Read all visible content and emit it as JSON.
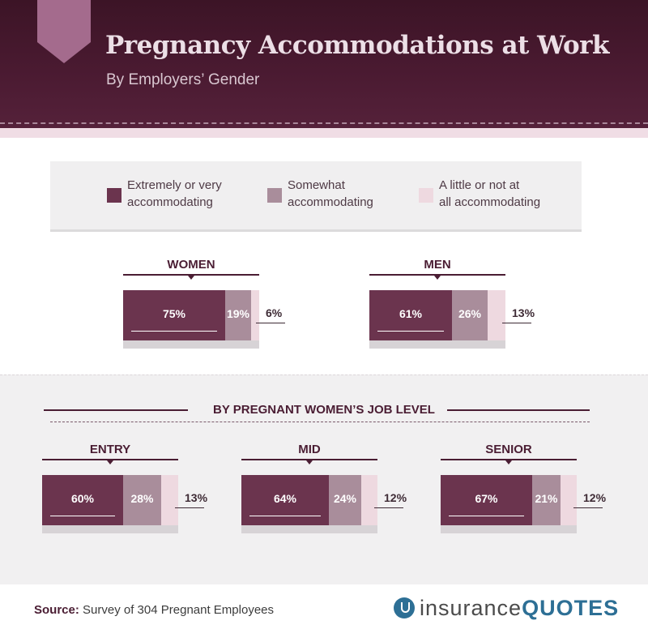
{
  "header": {
    "title": "Pregnancy Accommodations at Work",
    "subtitle": "By Employers’ Gender"
  },
  "legend": [
    {
      "line1": "Extremely or very",
      "line2": "accommodating",
      "color": "#6b344e"
    },
    {
      "line1": "Somewhat",
      "line2": "accommodating",
      "color": "#a98d9b"
    },
    {
      "line1": "A little or not at",
      "line2": "all accommodating",
      "color": "#eed9e0"
    }
  ],
  "section2": {
    "heading": "BY PREGNANT WOMEN’S JOB LEVEL"
  },
  "footer": {
    "source_label": "Source:",
    "source_text": "Survey of 304 Pregnant Employees",
    "logo_part1": "insurance",
    "logo_part2": "QUOTES"
  },
  "colors": {
    "dark": "#6b344e",
    "mid": "#a98d9b",
    "light": "#eed9e0"
  },
  "chart_data": [
    {
      "type": "bar",
      "stacked": true,
      "title": "WOMEN",
      "series": [
        {
          "name": "Extremely or very accommodating",
          "value": 75,
          "label": "75%"
        },
        {
          "name": "Somewhat accommodating",
          "value": 19,
          "label": "19%"
        },
        {
          "name": "A little or not at all accommodating",
          "value": 6,
          "label": "6%"
        }
      ]
    },
    {
      "type": "bar",
      "stacked": true,
      "title": "MEN",
      "series": [
        {
          "name": "Extremely or very accommodating",
          "value": 61,
          "label": "61%"
        },
        {
          "name": "Somewhat accommodating",
          "value": 26,
          "label": "26%"
        },
        {
          "name": "A little or not at all accommodating",
          "value": 13,
          "label": "13%"
        }
      ]
    },
    {
      "type": "bar",
      "stacked": true,
      "title": "ENTRY",
      "series": [
        {
          "name": "Extremely or very accommodating",
          "value": 60,
          "label": "60%"
        },
        {
          "name": "Somewhat accommodating",
          "value": 28,
          "label": "28%"
        },
        {
          "name": "A little or not at all accommodating",
          "value": 13,
          "label": "13%"
        }
      ]
    },
    {
      "type": "bar",
      "stacked": true,
      "title": "MID",
      "series": [
        {
          "name": "Extremely or very accommodating",
          "value": 64,
          "label": "64%"
        },
        {
          "name": "Somewhat accommodating",
          "value": 24,
          "label": "24%"
        },
        {
          "name": "A little or not at all accommodating",
          "value": 12,
          "label": "12%"
        }
      ]
    },
    {
      "type": "bar",
      "stacked": true,
      "title": "SENIOR",
      "series": [
        {
          "name": "Extremely or very accommodating",
          "value": 67,
          "label": "67%"
        },
        {
          "name": "Somewhat accommodating",
          "value": 21,
          "label": "21%"
        },
        {
          "name": "A little or not at all accommodating",
          "value": 12,
          "label": "12%"
        }
      ]
    }
  ]
}
